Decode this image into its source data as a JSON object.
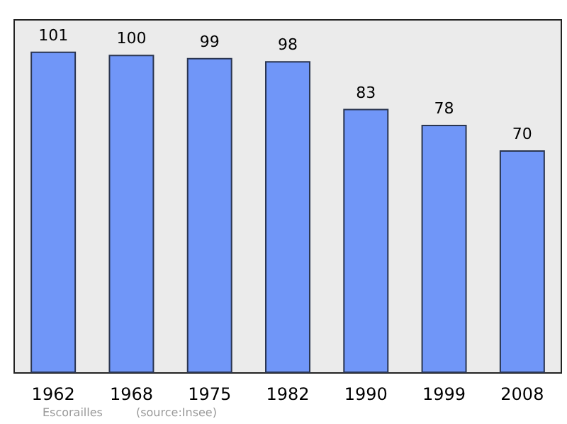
{
  "chart_data": {
    "type": "bar",
    "categories": [
      "1962",
      "1968",
      "1975",
      "1982",
      "1990",
      "1999",
      "2008"
    ],
    "values": [
      101,
      100,
      99,
      98,
      83,
      78,
      70
    ],
    "color": "#7096f8",
    "ylim": [
      0,
      111
    ],
    "data_labels": true,
    "tick_labels": "x",
    "annotations": [
      "Escorailles",
      "(source:Insee)"
    ]
  }
}
